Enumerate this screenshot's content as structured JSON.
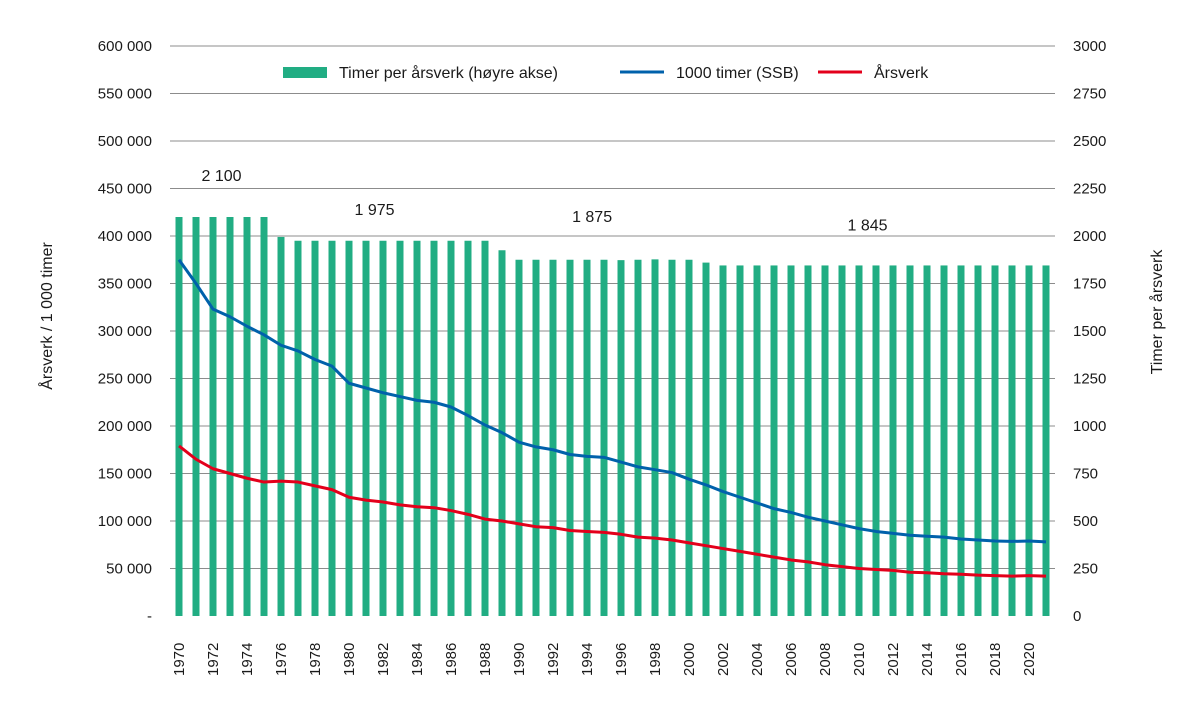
{
  "chart_data": {
    "type": "bar+line",
    "title": "",
    "ylabel_left": "Årsverk / 1 000 timer",
    "ylabel_right": "Timer per årsverk",
    "ylim_left": [
      0,
      600000
    ],
    "ylim_right": [
      0,
      3000
    ],
    "yticks_left": [
      "-",
      "50 000",
      "100 000",
      "150 000",
      "200 000",
      "250 000",
      "300 000",
      "350 000",
      "400 000",
      "450 000",
      "500 000",
      "550 000",
      "600 000"
    ],
    "yticks_right": [
      "0",
      "250",
      "500",
      "750",
      "1000",
      "1250",
      "1500",
      "1750",
      "2000",
      "2250",
      "2500",
      "2750",
      "3000"
    ],
    "grid": true,
    "legend_position": "top",
    "x": [
      1970,
      1971,
      1972,
      1973,
      1974,
      1975,
      1976,
      1977,
      1978,
      1979,
      1980,
      1981,
      1982,
      1983,
      1984,
      1985,
      1986,
      1987,
      1988,
      1989,
      1990,
      1991,
      1992,
      1993,
      1994,
      1995,
      1996,
      1997,
      1998,
      1999,
      2000,
      2001,
      2002,
      2003,
      2004,
      2005,
      2006,
      2007,
      2008,
      2009,
      2010,
      2011,
      2012,
      2013,
      2014,
      2015,
      2016,
      2017,
      2018,
      2019,
      2020,
      2021
    ],
    "series": [
      {
        "name": "Timer per årsverk (høyre akse)",
        "type": "bar",
        "axis": "right",
        "color": "#21ad83",
        "values": [
          2100,
          2100,
          2100,
          2100,
          2100,
          2100,
          1995,
          1975,
          1975,
          1975,
          1975,
          1975,
          1975,
          1975,
          1975,
          1975,
          1975,
          1975,
          1975,
          1925,
          1875,
          1875,
          1875,
          1875,
          1875,
          1875,
          1873,
          1875,
          1877,
          1875,
          1875,
          1860,
          1845,
          1845,
          1845,
          1845,
          1845,
          1845,
          1845,
          1845,
          1845,
          1845,
          1845,
          1845,
          1845,
          1845,
          1845,
          1845,
          1845,
          1845,
          1845,
          1845
        ]
      },
      {
        "name": "1000 timer (SSB)",
        "type": "line",
        "axis": "left",
        "color": "#0061ab",
        "values": [
          375000,
          350000,
          323000,
          315000,
          305000,
          296000,
          285000,
          279000,
          270000,
          263000,
          245000,
          240000,
          235000,
          231000,
          227000,
          225000,
          220000,
          211000,
          201000,
          193000,
          183000,
          178000,
          175000,
          170000,
          168000,
          167000,
          162000,
          157000,
          154000,
          151000,
          144000,
          138000,
          131000,
          125000,
          119000,
          113000,
          109000,
          104000,
          100000,
          96000,
          92000,
          89000,
          87000,
          85000,
          84000,
          83000,
          81000,
          80000,
          79000,
          78500,
          79000,
          78000
        ]
      },
      {
        "name": "Årsverk",
        "type": "line",
        "axis": "left",
        "color": "#e3001b",
        "values": [
          179000,
          165000,
          155000,
          150000,
          145000,
          141000,
          142000,
          141000,
          137000,
          133000,
          125000,
          122000,
          120000,
          117000,
          115000,
          114000,
          111000,
          107000,
          102000,
          100000,
          97000,
          94000,
          93000,
          90000,
          89000,
          88000,
          86000,
          83000,
          82000,
          80000,
          77000,
          74000,
          71000,
          68000,
          65000,
          62000,
          59000,
          57000,
          54000,
          52000,
          50000,
          49000,
          48000,
          46000,
          45500,
          44500,
          44000,
          43000,
          42500,
          42000,
          42500,
          42000
        ]
      }
    ],
    "annotations": [
      {
        "text": "2 100",
        "year": 1972.5,
        "value_right": 2290
      },
      {
        "text": "1 975",
        "year": 1981.5,
        "value_right": 2110
      },
      {
        "text": "1 875",
        "year": 1994.3,
        "value_right": 2075
      },
      {
        "text": "1 845",
        "year": 2010.5,
        "value_right": 2030
      }
    ]
  }
}
